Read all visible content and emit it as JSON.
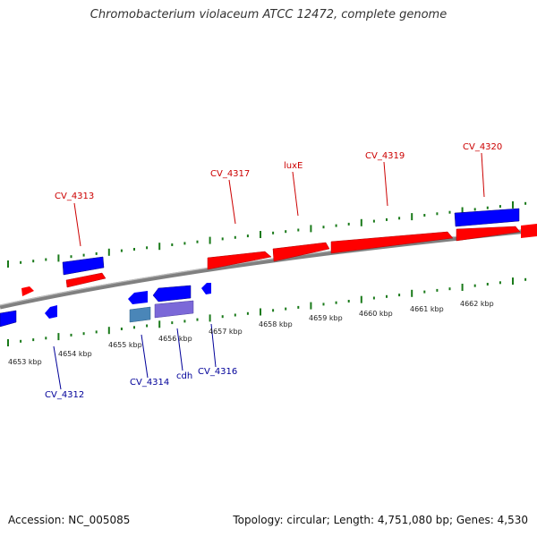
{
  "title": "Chromobacterium violaceum ATCC 12472, complete genome",
  "footer": {
    "accession": "Accession: NC_005085",
    "topology": "Topology: circular; Length: 4,751,080 bp; Genes: 4,530"
  },
  "colors": {
    "forward_cds": "#ff0000",
    "reverse_cds": "#0000ff",
    "reverse_rna_light": "#4a86b8",
    "reverse_rna_purple": "#7b68d8",
    "forward_label": "#cc0000",
    "reverse_label": "#000099",
    "tick_green": "#1a7a1a",
    "backbone": "#808080"
  },
  "scale": {
    "unit": "kbp",
    "labels": [
      "4653 kbp",
      "4654 kbp",
      "4655 kbp",
      "4656 kbp",
      "4657 kbp",
      "4658 kbp",
      "4659 kbp",
      "4660 kbp",
      "4661 kbp",
      "4662 kbp"
    ]
  },
  "genes": {
    "forward_labels": [
      "CV_4313",
      "CV_4317",
      "luxE",
      "CV_4319",
      "CV_4320"
    ],
    "reverse_labels": [
      "CV_4312",
      "CV_4314",
      "cdh",
      "CV_4316"
    ]
  }
}
